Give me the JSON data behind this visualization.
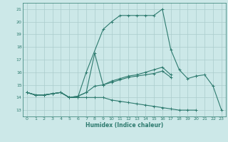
{
  "xlabel": "Humidex (Indice chaleur)",
  "background_color": "#cce8e8",
  "grid_color": "#aacccc",
  "line_color": "#2d7a6e",
  "xlim": [
    -0.5,
    23.5
  ],
  "ylim": [
    12.5,
    21.5
  ],
  "yticks": [
    13,
    14,
    15,
    16,
    17,
    18,
    19,
    20,
    21
  ],
  "xticks": [
    0,
    1,
    2,
    3,
    4,
    5,
    6,
    7,
    8,
    9,
    10,
    11,
    12,
    13,
    14,
    15,
    16,
    17,
    18,
    19,
    20,
    21,
    22,
    23
  ],
  "curves": [
    {
      "x": [
        0,
        1,
        2,
        3,
        4,
        5,
        6,
        7,
        9,
        10,
        11,
        12,
        13,
        14,
        15,
        16,
        17,
        18,
        19,
        20
      ],
      "y": [
        14.4,
        14.2,
        14.2,
        14.3,
        14.4,
        14.0,
        14.0,
        16.0,
        19.4,
        20.0,
        20.5,
        20.5,
        20.5,
        20.5,
        20.5,
        21.0,
        17.8,
        16.2,
        15.5,
        15.7
      ]
    },
    {
      "x": [
        0,
        1,
        2,
        3,
        4,
        5,
        6,
        7,
        8,
        9,
        10,
        11,
        12,
        13,
        14,
        15,
        16,
        17
      ],
      "y": [
        14.4,
        14.2,
        14.2,
        14.3,
        14.4,
        14.0,
        14.1,
        14.4,
        17.5,
        15.0,
        15.3,
        15.5,
        15.7,
        15.8,
        16.0,
        16.2,
        16.4,
        15.8
      ]
    },
    {
      "x": [
        0,
        1,
        2,
        3,
        4,
        5,
        6,
        7,
        8,
        9,
        10,
        11,
        12,
        13,
        14,
        15,
        16,
        17
      ],
      "y": [
        14.4,
        14.2,
        14.2,
        14.3,
        14.4,
        14.0,
        14.1,
        14.4,
        14.9,
        15.0,
        15.2,
        15.4,
        15.6,
        15.7,
        15.8,
        15.9,
        16.1,
        15.6
      ]
    },
    {
      "x": [
        0,
        1,
        2,
        3,
        4,
        5,
        6,
        7,
        8,
        9,
        10,
        11,
        12,
        13,
        14,
        15,
        16,
        17,
        18,
        19,
        20
      ],
      "y": [
        14.4,
        14.2,
        14.2,
        14.3,
        14.4,
        14.0,
        14.0,
        14.0,
        14.0,
        14.0,
        13.8,
        13.7,
        13.6,
        13.5,
        13.4,
        13.3,
        13.2,
        13.1,
        13.0,
        13.0,
        13.0
      ]
    },
    {
      "x": [
        20,
        21,
        22,
        23
      ],
      "y": [
        15.7,
        15.8,
        14.9,
        13.0
      ]
    }
  ]
}
